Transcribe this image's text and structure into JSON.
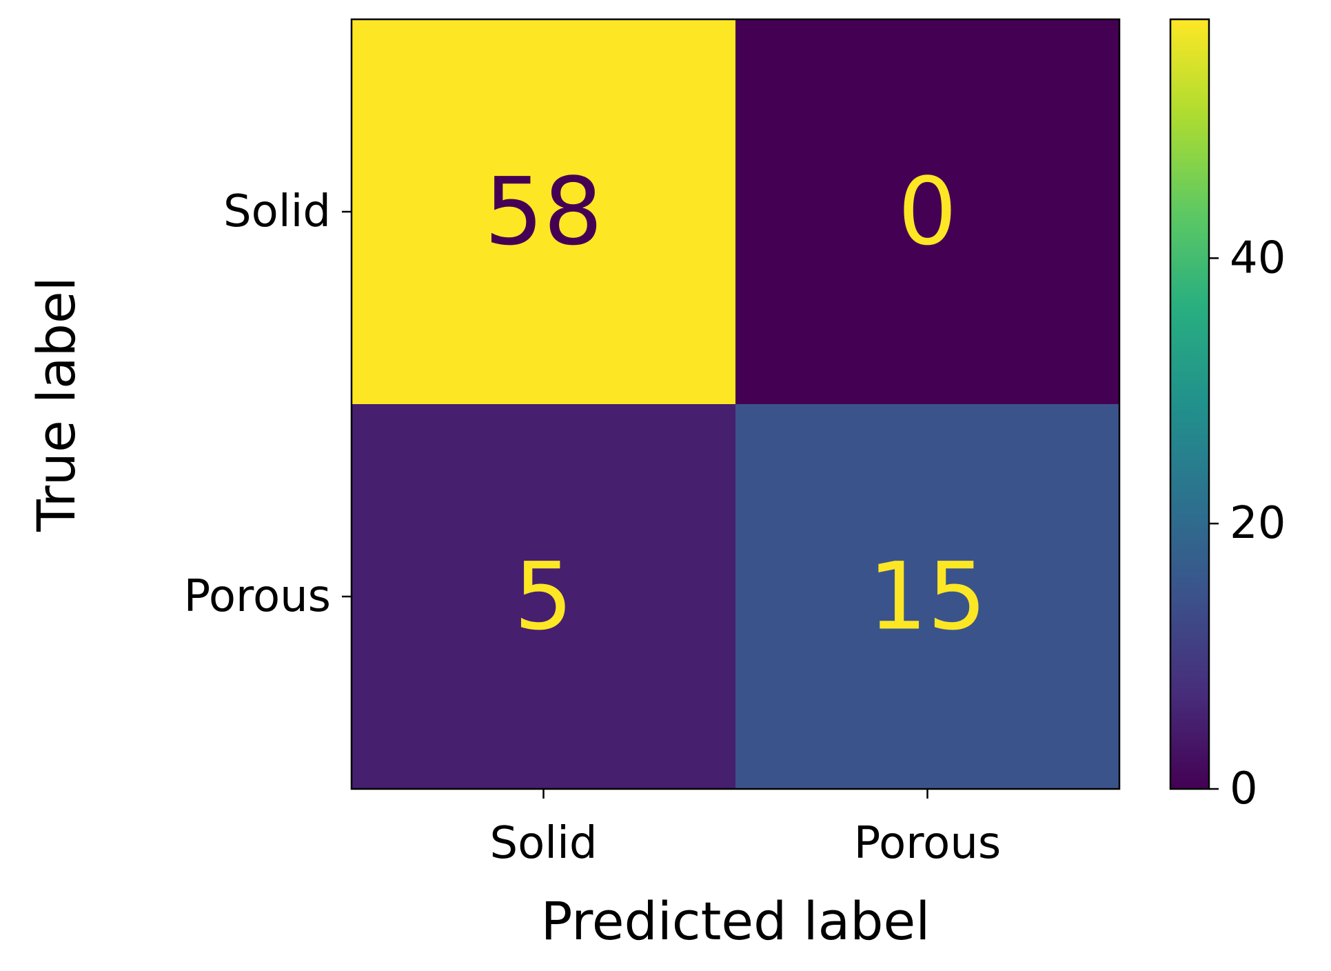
{
  "chart_data": {
    "type": "heatmap",
    "title": "",
    "xlabel": "Predicted label",
    "ylabel": "True label",
    "x_categories": [
      "Solid",
      "Porous"
    ],
    "y_categories": [
      "Solid",
      "Porous"
    ],
    "values": [
      [
        58,
        0
      ],
      [
        5,
        15
      ]
    ],
    "colormap": "viridis",
    "colorbar": {
      "range": [
        0,
        58
      ],
      "ticks": [
        0,
        20,
        40
      ]
    },
    "grid": false
  }
}
